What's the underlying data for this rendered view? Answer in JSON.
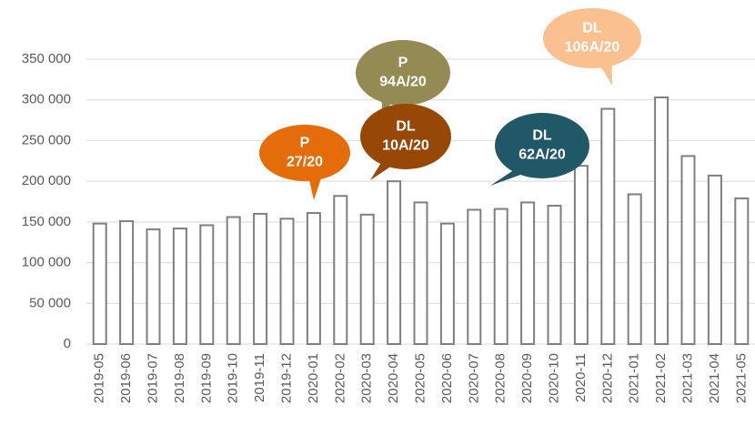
{
  "chart_data": {
    "type": "bar",
    "categories": [
      "2019-05",
      "2019-06",
      "2019-07",
      "2019-08",
      "2019-09",
      "2019-10",
      "2019-11",
      "2019-12",
      "2020-01",
      "2020-02",
      "2020-03",
      "2020-04",
      "2020-05",
      "2020-06",
      "2020-07",
      "2020-08",
      "2020-09",
      "2020-10",
      "2020-11",
      "2020-12",
      "2021-01",
      "2021-02",
      "2021-03",
      "2021-04",
      "2021-05"
    ],
    "values": [
      148000,
      151000,
      141000,
      142000,
      146000,
      156000,
      160000,
      154000,
      161000,
      182000,
      159000,
      200000,
      174000,
      148000,
      165000,
      166000,
      174000,
      170000,
      219000,
      289000,
      184000,
      303000,
      231000,
      207000,
      179000
    ],
    "color": "#7f7f7f",
    "ylim": [
      0,
      350000
    ],
    "yticks": [
      0,
      {
        "value": 50000,
        "label": "50 000"
      },
      {
        "value": 100000,
        "label": "100 000"
      },
      {
        "value": 150000,
        "label": "150 000"
      },
      {
        "value": 200000,
        "label": "200 000"
      },
      {
        "value": 250000,
        "label": "250 000"
      },
      {
        "value": 300000,
        "label": "300 000"
      },
      {
        "value": 350000,
        "label": "350 000"
      }
    ],
    "grid": true,
    "annotations": [
      {
        "lines": [
          "P",
          "27/20"
        ],
        "color": "#e46c0a"
      },
      {
        "lines": [
          "P",
          "94A/20"
        ],
        "color": "#948a54"
      },
      {
        "lines": [
          "DL",
          "10A/20"
        ],
        "color": "#974706"
      },
      {
        "lines": [
          "DL",
          "62A/20"
        ],
        "color": "#215868"
      },
      {
        "lines": [
          "DL",
          "106A/20"
        ],
        "color": "#fac090"
      }
    ]
  }
}
